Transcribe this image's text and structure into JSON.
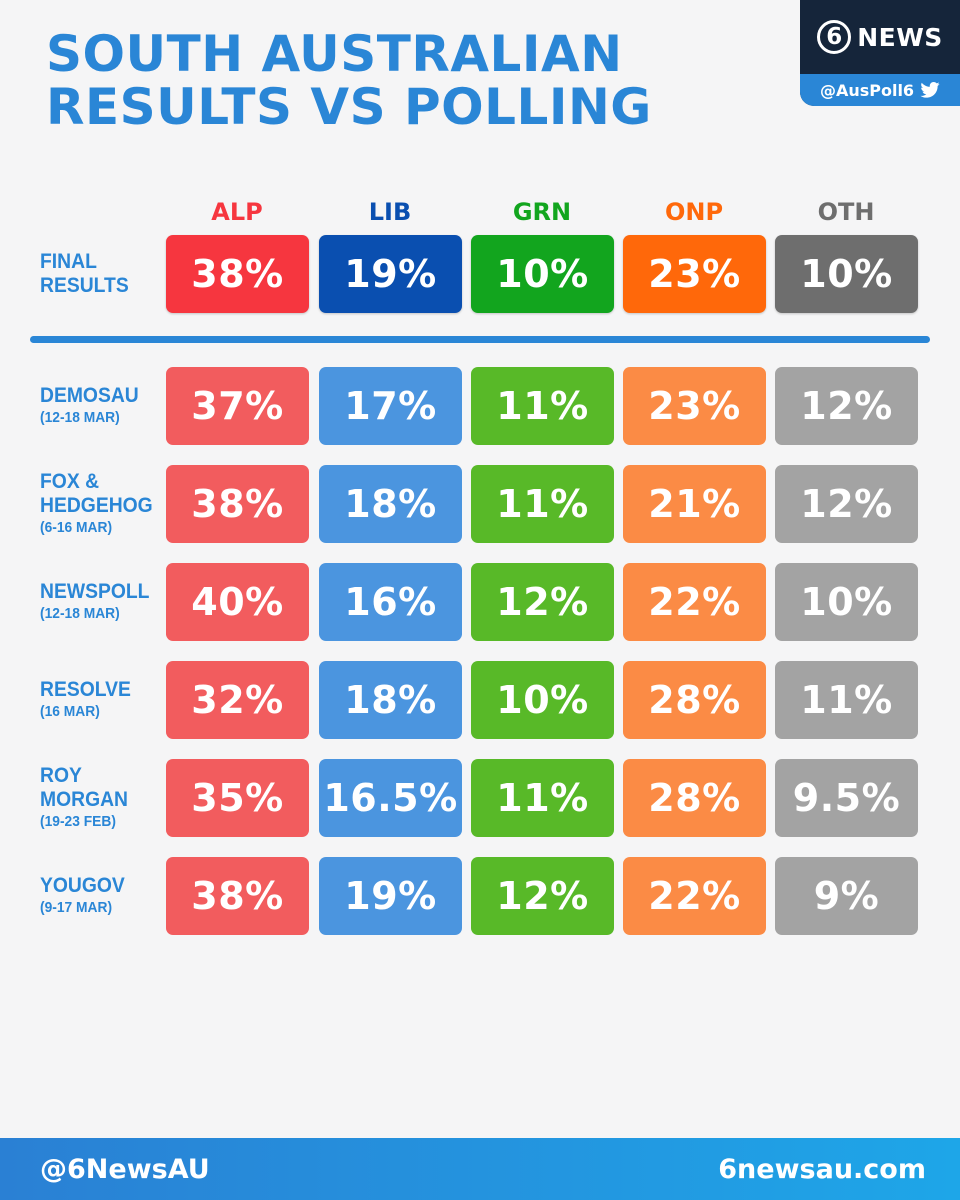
{
  "title": {
    "line1": "SOUTH AUSTRALIAN",
    "line2": "RESULTS VS POLLING"
  },
  "brand": {
    "logo_number": "6",
    "logo_text": "NEWS",
    "handle": "@AusPoll6",
    "icon": "twitter-bird-icon"
  },
  "footer": {
    "left": "@6NewsAU",
    "right": "6newsau.com"
  },
  "colors": {
    "title": "#2a86d6",
    "final": {
      "ALP": "#f6363f",
      "LIB": "#0a4fb0",
      "GRN": "#12a51e",
      "ONP": "#ff680a",
      "OTH": "#6e6e6e"
    },
    "polls": {
      "ALP": "#f25c5e",
      "LIB": "#4b95df",
      "GRN": "#58b928",
      "ONP": "#fb8b45",
      "OTH": "#a3a3a3"
    }
  },
  "chart_data": {
    "type": "table",
    "columns": [
      "ALP",
      "LIB",
      "GRN",
      "ONP",
      "OTH"
    ],
    "final": {
      "label_line1": "FINAL",
      "label_line2": "RESULTS",
      "values": [
        "38%",
        "19%",
        "10%",
        "23%",
        "10%"
      ]
    },
    "polls": [
      {
        "name_lines": [
          "DEMOSAU"
        ],
        "dates": "(12-18 MAR)",
        "values": [
          "37%",
          "17%",
          "11%",
          "23%",
          "12%"
        ]
      },
      {
        "name_lines": [
          "FOX &",
          "HEDGEHOG"
        ],
        "dates": "(6-16 MAR)",
        "values": [
          "38%",
          "18%",
          "11%",
          "21%",
          "12%"
        ]
      },
      {
        "name_lines": [
          "NEWSPOLL"
        ],
        "dates": "(12-18 MAR)",
        "values": [
          "40%",
          "16%",
          "12%",
          "22%",
          "10%"
        ]
      },
      {
        "name_lines": [
          "RESOLVE"
        ],
        "dates": "(16 MAR)",
        "values": [
          "32%",
          "18%",
          "10%",
          "28%",
          "11%"
        ]
      },
      {
        "name_lines": [
          "ROY",
          "MORGAN"
        ],
        "dates": "(19-23 FEB)",
        "values": [
          "35%",
          "16.5%",
          "11%",
          "28%",
          "9.5%"
        ]
      },
      {
        "name_lines": [
          "YOUGOV"
        ],
        "dates": "(9-17 MAR)",
        "values": [
          "38%",
          "19%",
          "12%",
          "22%",
          "9%"
        ]
      }
    ]
  }
}
